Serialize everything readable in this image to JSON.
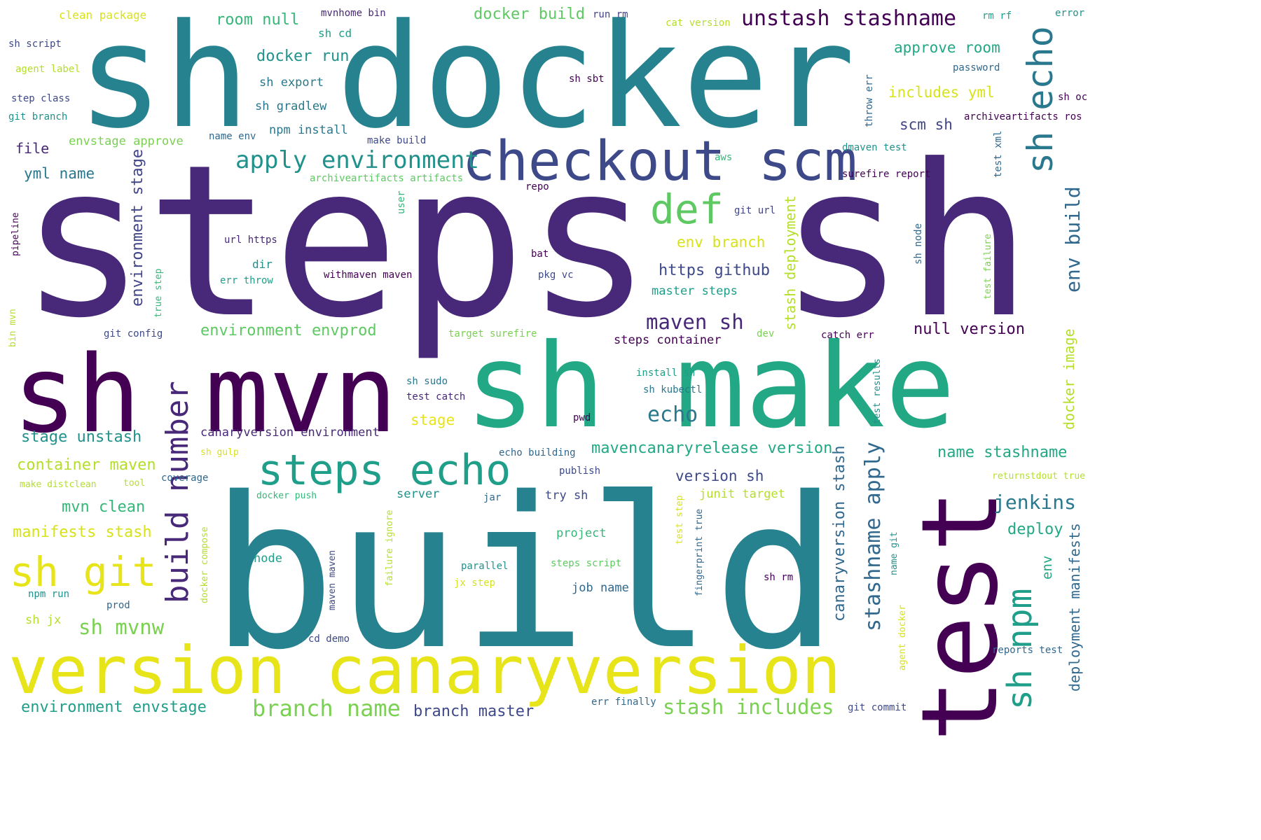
{
  "palette": [
    "#440154",
    "#482878",
    "#3e4989",
    "#31688e",
    "#26828e",
    "#1f9e89",
    "#35b779",
    "#6ece58",
    "#b5de2b",
    "#fde725"
  ],
  "words": [
    {
      "t": "steps sh",
      "c": "#482878"
    },
    {
      "t": "build",
      "c": "#26828e"
    },
    {
      "t": "sh docker",
      "c": "#26828e"
    },
    {
      "t": "sh make",
      "c": "#22a884"
    },
    {
      "t": "sh mvn",
      "c": "#440154"
    },
    {
      "t": "test",
      "c": "#440154"
    },
    {
      "t": "version canaryversion",
      "c": "#e7e419"
    },
    {
      "t": "checkout scm",
      "c": "#3e4989"
    },
    {
      "t": "steps echo",
      "c": "#1f9e89"
    },
    {
      "t": "sh git",
      "c": "#e7e419"
    },
    {
      "t": "sh echo",
      "c": "#2a788e"
    },
    {
      "t": "def",
      "c": "#5ec962"
    },
    {
      "t": "build number",
      "c": "#482878"
    },
    {
      "t": "sh npm",
      "c": "#1f9e89"
    },
    {
      "t": "apply environment",
      "c": "#21918c"
    },
    {
      "t": "unstash stashname",
      "c": "#440154"
    },
    {
      "t": "branch name",
      "c": "#7ad151"
    },
    {
      "t": "stash includes",
      "c": "#7ad151"
    },
    {
      "t": "stashname apply",
      "c": "#31688e"
    },
    {
      "t": "maven sh",
      "c": "#482878"
    },
    {
      "t": "env build",
      "c": "#31688e"
    },
    {
      "t": "echo",
      "c": "#2a788e"
    },
    {
      "t": "jenkins",
      "c": "#2a788e"
    },
    {
      "t": "sh mvnw",
      "c": "#7ad151"
    },
    {
      "t": "canaryversion stash",
      "c": "#31688e"
    },
    {
      "t": "https github",
      "c": "#3e4989"
    },
    {
      "t": "environment stage",
      "c": "#414487"
    },
    {
      "t": "stash deployment",
      "c": "#b5de2b"
    },
    {
      "t": "environment envprod",
      "c": "#5ec962"
    },
    {
      "t": "mavencanaryrelease version",
      "c": "#22a884"
    },
    {
      "t": "environment envstage",
      "c": "#1f9e89"
    },
    {
      "t": "branch master",
      "c": "#3e4989"
    },
    {
      "t": "deployment manifests",
      "c": "#31688e"
    },
    {
      "t": "null version",
      "c": "#440154"
    },
    {
      "t": "docker build",
      "c": "#5ec962"
    },
    {
      "t": "docker run",
      "c": "#21918c"
    },
    {
      "t": "stage unstash",
      "c": "#21918c"
    },
    {
      "t": "container maven",
      "c": "#b5de2b"
    },
    {
      "t": "name stashname",
      "c": "#22a884"
    },
    {
      "t": "manifests stash",
      "c": "#d8e219"
    },
    {
      "t": "mvn clean",
      "c": "#35b779"
    },
    {
      "t": "env branch",
      "c": "#d8e219"
    },
    {
      "t": "includes yml",
      "c": "#d8e219"
    },
    {
      "t": "approve room",
      "c": "#22a884"
    },
    {
      "t": "scm sh",
      "c": "#414487"
    },
    {
      "t": "deploy",
      "c": "#22a884"
    },
    {
      "t": "version sh",
      "c": "#3e4989"
    },
    {
      "t": "room null",
      "c": "#35b779"
    },
    {
      "t": "yml name",
      "c": "#2a788e"
    },
    {
      "t": "docker image",
      "c": "#b5de2b"
    },
    {
      "t": "stage",
      "c": "#e7e419"
    },
    {
      "t": "canaryversion environment",
      "c": "#482878"
    },
    {
      "t": "try sh",
      "c": "#3e4989"
    },
    {
      "t": "file",
      "c": "#482878"
    },
    {
      "t": "env",
      "c": "#22a884"
    },
    {
      "t": "clean package",
      "c": "#d8e219"
    },
    {
      "t": "sh export",
      "c": "#2a788e"
    },
    {
      "t": "sh gradlew",
      "c": "#2a788e"
    },
    {
      "t": "npm install",
      "c": "#2a788e"
    },
    {
      "t": "junit target",
      "c": "#b5de2b"
    },
    {
      "t": "master steps",
      "c": "#1f9e89"
    },
    {
      "t": "steps container",
      "c": "#440154"
    },
    {
      "t": "job name",
      "c": "#31688e"
    },
    {
      "t": "project",
      "c": "#35b779"
    },
    {
      "t": "node",
      "c": "#1f9e89"
    },
    {
      "t": "server",
      "c": "#21918c"
    },
    {
      "t": "envstage approve",
      "c": "#7ad151"
    },
    {
      "t": "sh jx",
      "c": "#b5de2b"
    },
    {
      "t": "dir",
      "c": "#21918c"
    },
    {
      "t": "mvnhome bin",
      "c": "#482878"
    },
    {
      "t": "sh cd",
      "c": "#1f9e89"
    },
    {
      "t": "run rm",
      "c": "#414487"
    },
    {
      "t": "cat version",
      "c": "#b5de2b"
    },
    {
      "t": "rm rf",
      "c": "#1f9e89"
    },
    {
      "t": "error",
      "c": "#21918c"
    },
    {
      "t": "sh script",
      "c": "#3e4989"
    },
    {
      "t": "agent label",
      "c": "#b5de2b"
    },
    {
      "t": "step class",
      "c": "#3e4989"
    },
    {
      "t": "git branch",
      "c": "#21918c"
    },
    {
      "t": "password",
      "c": "#31688e"
    },
    {
      "t": "sh sbt",
      "c": "#440154"
    },
    {
      "t": "sh oc",
      "c": "#440154"
    },
    {
      "t": "archiveartifacts ros",
      "c": "#440154"
    },
    {
      "t": "throw err",
      "c": "#31688e"
    },
    {
      "t": "name env",
      "c": "#31688e"
    },
    {
      "t": "make build",
      "c": "#3e4989"
    },
    {
      "t": "dmaven test",
      "c": "#21918c"
    },
    {
      "t": "aws",
      "c": "#35b779"
    },
    {
      "t": "test xml",
      "c": "#31688e"
    },
    {
      "t": "surefire report",
      "c": "#440154"
    },
    {
      "t": "archiveartifacts artifacts",
      "c": "#5ec962"
    },
    {
      "t": "repo",
      "c": "#440154"
    },
    {
      "t": "user",
      "c": "#35b779"
    },
    {
      "t": "git url",
      "c": "#414487"
    },
    {
      "t": "url https",
      "c": "#482878"
    },
    {
      "t": "sh node",
      "c": "#31688e"
    },
    {
      "t": "bat",
      "c": "#440154"
    },
    {
      "t": "withmaven maven",
      "c": "#440154"
    },
    {
      "t": "pkg vc",
      "c": "#3e4989"
    },
    {
      "t": "err throw",
      "c": "#1f9e89"
    },
    {
      "t": "pipeline",
      "c": "#440154"
    },
    {
      "t": "true step",
      "c": "#35b779"
    },
    {
      "t": "test failure",
      "c": "#7ad151"
    },
    {
      "t": "bin mvn",
      "c": "#b5de2b"
    },
    {
      "t": "git config",
      "c": "#3e4989"
    },
    {
      "t": "target surefire",
      "c": "#7ad151"
    },
    {
      "t": "dev",
      "c": "#7ad151"
    },
    {
      "t": "catch err",
      "c": "#440154"
    },
    {
      "t": "install sh",
      "c": "#1f9e89"
    },
    {
      "t": "test results",
      "c": "#21918c"
    },
    {
      "t": "sh sudo",
      "c": "#2a788e"
    },
    {
      "t": "sh kubectl",
      "c": "#2a788e"
    },
    {
      "t": "test catch",
      "c": "#482878"
    },
    {
      "t": "pwd",
      "c": "#440154"
    },
    {
      "t": "sh gulp",
      "c": "#d8e219"
    },
    {
      "t": "echo building",
      "c": "#31688e"
    },
    {
      "t": "coverage",
      "c": "#31688e"
    },
    {
      "t": "publish",
      "c": "#3e4989"
    },
    {
      "t": "make distclean",
      "c": "#b5de2b"
    },
    {
      "t": "tool",
      "c": "#b5de2b"
    },
    {
      "t": "returnstdout true",
      "c": "#b5de2b"
    },
    {
      "t": "jar",
      "c": "#31688e"
    },
    {
      "t": "docker push",
      "c": "#35b779"
    },
    {
      "t": "docker compose",
      "c": "#b5de2b"
    },
    {
      "t": "failure ignore",
      "c": "#b5de2b"
    },
    {
      "t": "test step",
      "c": "#d8e219"
    },
    {
      "t": "fingerprint true",
      "c": "#31688e"
    },
    {
      "t": "name git",
      "c": "#21918c"
    },
    {
      "t": "maven maven",
      "c": "#3e4989"
    },
    {
      "t": "parallel",
      "c": "#21918c"
    },
    {
      "t": "steps script",
      "c": "#5ec962"
    },
    {
      "t": "jx step",
      "c": "#d8e219"
    },
    {
      "t": "sh rm",
      "c": "#440154"
    },
    {
      "t": "npm run",
      "c": "#21918c"
    },
    {
      "t": "prod",
      "c": "#31688e"
    },
    {
      "t": "agent docker",
      "c": "#d8e219"
    },
    {
      "t": "reports test",
      "c": "#31688e"
    },
    {
      "t": "cd demo",
      "c": "#3e4989"
    },
    {
      "t": "err finally",
      "c": "#31688e"
    },
    {
      "t": "git commit",
      "c": "#3e4989"
    }
  ]
}
